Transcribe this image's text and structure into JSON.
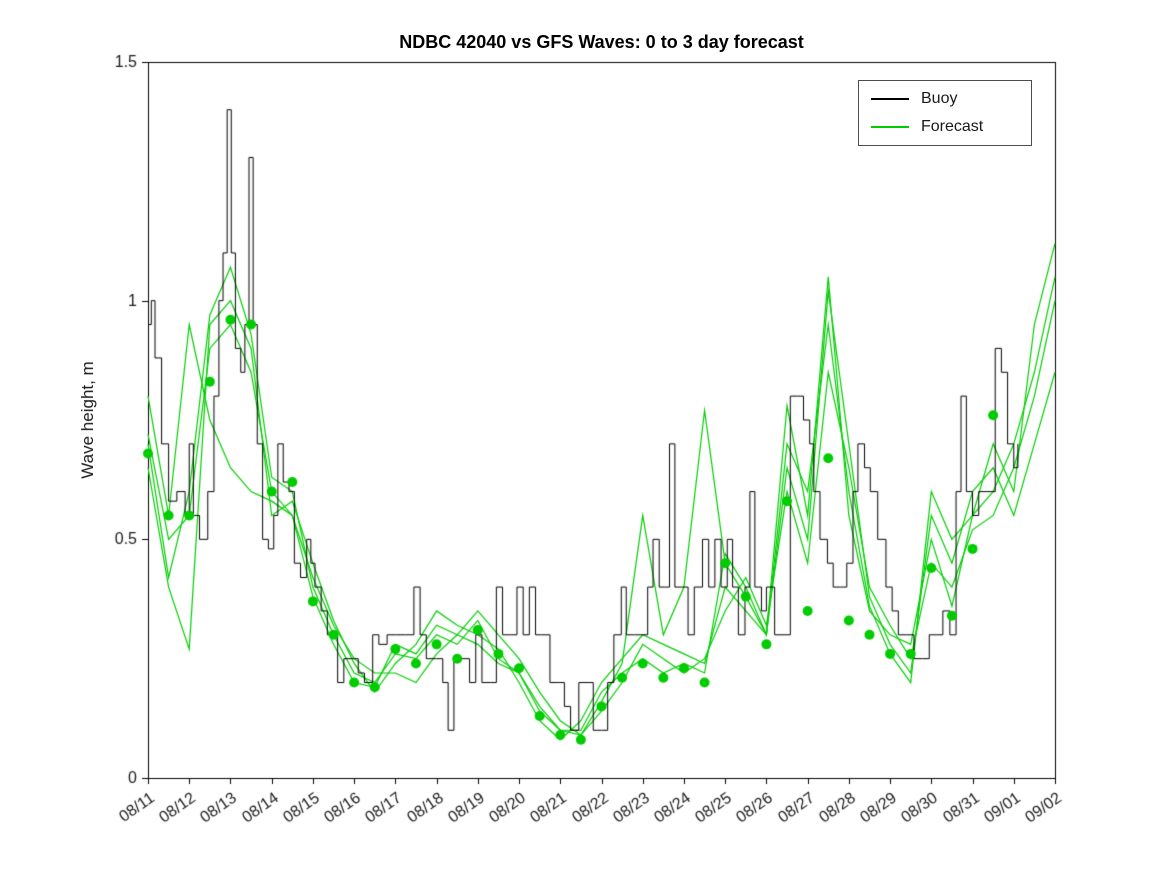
{
  "chart_data": {
    "type": "line",
    "title": "NDBC 42040 vs GFS Waves: 0 to 3 day forecast",
    "xlabel": "",
    "ylabel": "Wave height, m",
    "ylim": [
      0,
      1.5
    ],
    "xlim_days": [
      0,
      22
    ],
    "yticks": [
      0,
      0.5,
      1,
      1.5
    ],
    "ytick_labels": [
      "0",
      "0.5",
      "1",
      "1.5"
    ],
    "x_tick_labels": [
      "08/11",
      "08/12",
      "08/13",
      "08/14",
      "08/15",
      "08/16",
      "08/17",
      "08/18",
      "08/19",
      "08/20",
      "08/21",
      "08/22",
      "08/23",
      "08/24",
      "08/25",
      "08/26",
      "08/27",
      "08/28",
      "08/29",
      "08/30",
      "08/31",
      "09/01",
      "09/02"
    ],
    "x_tick_rotation_deg": -35,
    "grid": false,
    "legend": {
      "position": "top-right",
      "entries": [
        {
          "label": "Buoy",
          "color": "#000000"
        },
        {
          "label": "Forecast",
          "color": "#00cc00"
        }
      ]
    },
    "colors": {
      "buoy": "#000000",
      "forecast": "#00cc00",
      "axis": "#000000",
      "text": "#1a1a1a"
    },
    "buoy": {
      "name": "Buoy",
      "plot_style": "stairs",
      "x": [
        0.0,
        0.08,
        0.17,
        0.33,
        0.5,
        0.7,
        0.9,
        1.0,
        1.1,
        1.25,
        1.45,
        1.6,
        1.72,
        1.82,
        1.92,
        2.02,
        2.12,
        2.25,
        2.35,
        2.45,
        2.55,
        2.65,
        2.78,
        2.92,
        3.05,
        3.15,
        3.28,
        3.42,
        3.55,
        3.7,
        3.85,
        3.95,
        4.05,
        4.2,
        4.35,
        4.5,
        4.6,
        4.75,
        4.95,
        5.1,
        5.25,
        5.45,
        5.6,
        5.8,
        6.0,
        6.25,
        6.45,
        6.6,
        6.75,
        7.0,
        7.15,
        7.28,
        7.42,
        7.6,
        7.8,
        7.95,
        8.1,
        8.3,
        8.45,
        8.6,
        8.8,
        8.95,
        9.1,
        9.25,
        9.4,
        9.55,
        9.75,
        9.95,
        10.1,
        10.25,
        10.45,
        10.65,
        10.8,
        11.0,
        11.15,
        11.3,
        11.48,
        11.6,
        11.8,
        12.0,
        12.12,
        12.25,
        12.4,
        12.55,
        12.65,
        12.78,
        12.95,
        13.1,
        13.25,
        13.45,
        13.6,
        13.75,
        13.9,
        14.05,
        14.18,
        14.32,
        14.48,
        14.6,
        14.72,
        14.88,
        15.0,
        15.2,
        15.45,
        15.58,
        15.75,
        15.9,
        16.05,
        16.15,
        16.3,
        16.48,
        16.62,
        16.8,
        16.95,
        17.1,
        17.22,
        17.38,
        17.52,
        17.7,
        17.9,
        18.05,
        18.2,
        18.4,
        18.58,
        18.78,
        18.95,
        19.12,
        19.28,
        19.45,
        19.6,
        19.72,
        19.85,
        20.0,
        20.15,
        20.35,
        20.55,
        20.7,
        20.85,
        21.0,
        21.1
      ],
      "y": [
        0.95,
        1.0,
        0.88,
        0.7,
        0.58,
        0.6,
        0.55,
        0.7,
        0.55,
        0.5,
        0.6,
        0.8,
        1.0,
        1.1,
        1.4,
        1.1,
        0.9,
        0.85,
        0.95,
        1.3,
        0.95,
        0.7,
        0.5,
        0.48,
        0.55,
        0.7,
        0.62,
        0.6,
        0.45,
        0.42,
        0.5,
        0.45,
        0.4,
        0.35,
        0.3,
        0.3,
        0.2,
        0.25,
        0.25,
        0.22,
        0.2,
        0.3,
        0.28,
        0.3,
        0.3,
        0.3,
        0.4,
        0.3,
        0.25,
        0.25,
        0.2,
        0.1,
        0.25,
        0.25,
        0.2,
        0.3,
        0.2,
        0.2,
        0.4,
        0.3,
        0.3,
        0.4,
        0.3,
        0.4,
        0.3,
        0.3,
        0.2,
        0.2,
        0.15,
        0.1,
        0.2,
        0.2,
        0.1,
        0.1,
        0.2,
        0.3,
        0.4,
        0.3,
        0.3,
        0.3,
        0.4,
        0.5,
        0.4,
        0.4,
        0.7,
        0.4,
        0.4,
        0.3,
        0.4,
        0.5,
        0.4,
        0.5,
        0.4,
        0.5,
        0.4,
        0.3,
        0.4,
        0.6,
        0.4,
        0.35,
        0.4,
        0.3,
        0.3,
        0.8,
        0.8,
        0.75,
        0.7,
        0.6,
        0.5,
        0.45,
        0.4,
        0.4,
        0.45,
        0.6,
        0.7,
        0.65,
        0.6,
        0.5,
        0.4,
        0.35,
        0.3,
        0.3,
        0.25,
        0.25,
        0.3,
        0.3,
        0.35,
        0.3,
        0.6,
        0.8,
        0.6,
        0.55,
        0.6,
        0.6,
        0.9,
        0.85,
        0.7,
        0.65,
        0.7
      ]
    },
    "forecast_x": {
      "start": 0,
      "step": 0.5,
      "unit": "days from 08/11"
    },
    "forecast_runs": [
      {
        "values": [
          0.7,
          0.42,
          0.6,
          0.97,
          1.07,
          0.93,
          0.63,
          0.6,
          0.4,
          0.3,
          0.22,
          0.2,
          0.26,
          0.25,
          0.3,
          0.28,
          0.33,
          0.25,
          0.22,
          0.15,
          0.1,
          0.1,
          0.18,
          0.22,
          0.25,
          0.22,
          0.24,
          0.22,
          0.47,
          0.4,
          0.3,
          0.78,
          0.55,
          1.05,
          0.55,
          0.35,
          0.3,
          0.28,
          0.5,
          0.36,
          0.55,
          0.7,
          0.6,
          0.95,
          1.12
        ]
      },
      {
        "values": [
          0.8,
          0.55,
          0.95,
          0.75,
          0.65,
          0.6,
          0.58,
          0.55,
          0.42,
          0.32,
          0.25,
          0.22,
          0.22,
          0.2,
          0.26,
          0.3,
          0.35,
          0.3,
          0.25,
          0.18,
          0.12,
          0.09,
          0.14,
          0.2,
          0.28,
          0.25,
          0.22,
          0.25,
          0.35,
          0.42,
          0.32,
          0.6,
          0.45,
          0.85,
          0.65,
          0.4,
          0.32,
          0.25,
          0.45,
          0.4,
          0.52,
          0.55,
          0.65,
          0.8,
          1.0
        ]
      },
      {
        "values": [
          0.65,
          0.4,
          0.27,
          0.95,
          1.0,
          0.9,
          0.55,
          0.58,
          0.45,
          0.33,
          0.24,
          0.18,
          0.24,
          0.28,
          0.35,
          0.32,
          0.3,
          0.27,
          0.2,
          0.12,
          0.08,
          0.12,
          0.2,
          0.25,
          0.3,
          0.28,
          0.26,
          0.24,
          0.4,
          0.35,
          0.3,
          0.65,
          0.5,
          1.02,
          0.7,
          0.38,
          0.28,
          0.22,
          0.55,
          0.45,
          0.6,
          0.65,
          0.55,
          0.7,
          0.85
        ]
      },
      {
        "values": [
          0.72,
          0.5,
          0.55,
          0.9,
          0.95,
          0.85,
          0.6,
          0.55,
          0.38,
          0.28,
          0.2,
          0.19,
          0.28,
          0.26,
          0.32,
          0.3,
          0.28,
          0.24,
          0.22,
          0.14,
          0.1,
          0.09,
          0.16,
          0.24,
          0.55,
          0.3,
          0.4,
          0.77,
          0.45,
          0.38,
          0.3,
          0.7,
          0.6,
          0.95,
          0.6,
          0.36,
          0.26,
          0.2,
          0.6,
          0.5,
          0.55,
          0.6,
          0.7,
          0.85,
          1.05
        ]
      }
    ],
    "markers": {
      "name": "Forecast analysis points",
      "start": 0,
      "step": 0.5,
      "values": [
        0.68,
        0.55,
        0.55,
        0.83,
        0.96,
        0.95,
        0.6,
        0.62,
        0.37,
        0.3,
        0.2,
        0.19,
        0.27,
        0.24,
        0.28,
        0.25,
        0.31,
        0.26,
        0.23,
        0.13,
        0.09,
        0.08,
        0.15,
        0.21,
        0.24,
        0.21,
        0.23,
        0.2,
        0.45,
        0.38,
        0.28,
        0.58,
        0.35,
        0.67,
        0.33,
        0.3,
        0.26,
        0.26,
        0.44,
        0.34,
        0.48,
        0.76
      ]
    }
  }
}
